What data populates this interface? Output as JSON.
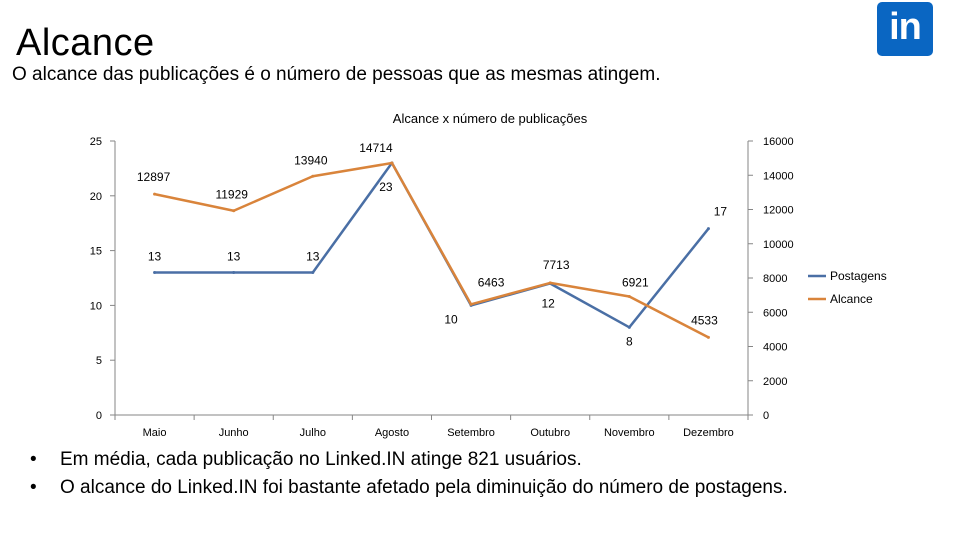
{
  "slide": {
    "title": "Alcance",
    "subtitle": "O alcance das publicações é o número de pessoas que as mesmas atingem.",
    "logo_text": "in",
    "brand_color": "#0a66c2",
    "bullets": [
      "Em média, cada publicação no Linked.IN atinge 821 usuários.",
      "O alcance do Linked.IN foi bastante afetado pela diminuição do número de postagens."
    ],
    "bullet_symbol": "•"
  },
  "chart_data": {
    "type": "line",
    "title": "Alcance x número de publicações",
    "categories": [
      "Maio",
      "Junho",
      "Julho",
      "Agosto",
      "Setembro",
      "Outubro",
      "Novembro",
      "Dezembro"
    ],
    "left_axis": {
      "min": 0,
      "max": 25,
      "ticks": [
        "0",
        "5",
        "10",
        "15",
        "20",
        "25"
      ],
      "tick_values": [
        0,
        5,
        10,
        15,
        20,
        25
      ]
    },
    "right_axis": {
      "min": 0,
      "max": 16000,
      "ticks": [
        "0",
        "2000",
        "4000",
        "6000",
        "8000",
        "10000",
        "12000",
        "14000",
        "16000"
      ],
      "tick_values": [
        0,
        2000,
        4000,
        6000,
        8000,
        10000,
        12000,
        14000,
        16000
      ]
    },
    "series": [
      {
        "name": "Postagens",
        "axis": "left",
        "color": "#4a6fa5",
        "values": [
          13,
          13,
          13,
          23,
          10,
          12,
          8,
          17
        ],
        "labels": [
          "13",
          "13",
          "13",
          "23",
          "10",
          "12",
          "8",
          "17"
        ]
      },
      {
        "name": "Alcance",
        "axis": "right",
        "color": "#d9843b",
        "values": [
          12897,
          11929,
          13940,
          14714,
          6463,
          7713,
          6921,
          4533
        ],
        "labels": [
          "12897",
          "11929",
          "13940",
          "14714",
          "6463",
          "7713",
          "6921",
          "4533"
        ]
      }
    ],
    "legend_position": "right"
  }
}
